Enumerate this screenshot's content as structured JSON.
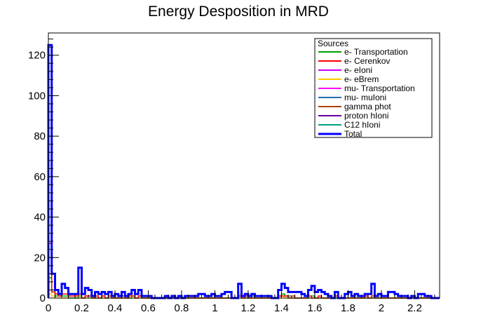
{
  "chart_data": {
    "type": "histogram",
    "title": "Energy Desposition in MRD",
    "xlabel": "",
    "ylabel": "",
    "xlim": [
      0,
      2.35
    ],
    "ylim": [
      0,
      131
    ],
    "x_ticks": [
      0,
      0.2,
      0.4,
      0.6,
      0.8,
      1,
      1.2,
      1.4,
      1.6,
      1.8,
      2,
      2.2
    ],
    "x_tick_labels": [
      "0",
      "0.2",
      "0.4",
      "0.6",
      "0.8",
      "1",
      "1.2",
      "1.4",
      "1.6",
      "1.8",
      "2",
      "2.2"
    ],
    "y_ticks": [
      0,
      20,
      40,
      60,
      80,
      100,
      120
    ],
    "y_tick_labels": [
      "0",
      "20",
      "40",
      "60",
      "80",
      "100",
      "120"
    ],
    "bin_width": 0.02,
    "legend": {
      "title": "Sources",
      "position": "top-right",
      "entries": [
        {
          "label": "e- Transportation",
          "color": "#00a000"
        },
        {
          "label": "e- Cerenkov",
          "color": "#ff0000"
        },
        {
          "label": "e- eIoni",
          "color": "#cc00ff"
        },
        {
          "label": "e- eBrem",
          "color": "#ffcc00"
        },
        {
          "label": "mu- Transportation",
          "color": "#ff00ff"
        },
        {
          "label": "mu- muIoni",
          "color": "#1f6fb0"
        },
        {
          "label": "gamma phot",
          "color": "#b04000"
        },
        {
          "label": "proton hIoni",
          "color": "#6a00a0"
        },
        {
          "label": "C12 hIoni",
          "color": "#00a080"
        },
        {
          "label": "Total",
          "color": "#0000ff"
        }
      ]
    },
    "series": [
      {
        "name": "Total",
        "color": "#0000ff",
        "values": [
          125,
          12,
          4,
          2,
          7,
          5,
          2,
          2,
          2,
          15,
          2,
          5,
          4,
          1,
          3,
          2,
          3,
          2,
          3,
          1,
          2,
          1,
          3,
          1,
          2,
          4,
          2,
          4,
          1,
          1,
          1,
          0,
          0,
          0,
          0,
          1,
          0,
          1,
          0,
          1,
          0,
          1,
          1,
          1,
          1,
          2,
          2,
          1,
          1,
          2,
          1,
          1,
          2,
          3,
          3,
          0,
          0,
          7,
          1,
          2,
          1,
          2,
          1,
          1,
          1,
          1,
          1,
          0,
          0,
          4,
          7,
          5,
          3,
          3,
          3,
          3,
          2,
          1,
          4,
          6,
          3,
          4,
          3,
          2,
          1,
          0,
          3,
          0,
          0,
          2,
          3,
          1,
          2,
          1,
          1,
          2,
          2,
          7,
          1,
          2,
          1,
          1,
          3,
          3,
          2,
          1,
          1,
          1,
          0,
          1,
          0,
          2,
          2,
          1,
          1,
          0,
          0,
          0,
          0,
          1,
          1,
          1,
          0,
          0,
          0,
          1,
          0,
          0,
          0,
          0,
          0,
          1,
          1,
          1,
          0,
          0,
          0,
          0,
          0,
          0,
          0,
          0,
          0,
          0,
          0,
          0,
          0,
          0,
          0,
          0,
          0,
          0,
          0,
          0,
          0,
          0,
          0,
          0,
          0,
          0,
          0,
          0,
          0,
          0,
          0,
          0,
          0,
          0,
          0,
          0,
          0,
          0,
          0,
          0,
          0,
          0,
          0,
          0,
          0,
          0,
          0,
          0,
          0,
          0,
          0,
          0,
          0,
          0,
          0,
          0,
          0,
          0,
          0,
          0,
          0,
          0,
          0,
          0,
          0,
          0,
          0,
          0,
          0,
          0,
          0,
          0,
          0,
          0,
          0,
          0,
          0,
          0,
          0,
          0,
          0,
          0,
          0,
          0,
          0,
          0,
          0,
          0,
          0,
          0,
          0,
          0,
          0,
          0,
          0,
          0,
          0,
          0,
          0,
          0,
          0,
          0,
          0,
          0,
          0,
          0,
          0,
          0,
          0,
          0,
          0,
          0,
          0,
          0,
          0,
          0,
          0,
          0,
          0,
          0,
          0,
          0,
          0,
          0,
          0,
          0,
          0,
          0,
          0,
          1,
          1,
          0,
          0,
          0,
          0,
          0,
          0,
          0,
          0,
          0,
          0,
          0,
          0,
          0,
          0,
          0,
          0,
          0,
          0,
          0,
          0,
          0,
          0,
          0,
          0,
          0
        ]
      },
      {
        "name": "e- Cerenkov",
        "color": "#ff0000",
        "values": [
          27,
          3,
          2,
          1,
          2,
          2,
          1,
          1,
          1,
          2,
          0,
          1,
          1,
          0,
          1,
          0,
          1,
          0,
          1,
          0,
          0,
          0,
          1,
          0,
          1,
          1,
          0,
          1,
          0,
          0,
          0,
          0,
          0,
          0,
          0,
          0,
          0,
          0,
          0,
          0,
          0,
          0,
          0,
          0,
          0,
          0,
          0,
          0,
          0,
          0,
          0,
          0,
          0,
          0,
          0,
          0,
          0,
          1,
          0,
          1,
          0,
          0,
          0,
          0,
          0,
          0,
          0,
          0,
          0,
          1,
          1,
          1,
          0,
          1,
          0,
          0,
          0,
          0,
          1,
          0,
          0,
          1,
          0,
          0,
          0,
          0,
          1,
          0,
          0,
          0,
          0,
          0,
          0,
          0,
          0,
          1,
          0,
          1,
          0,
          0,
          0,
          0,
          0,
          0,
          0,
          0,
          0,
          0,
          0,
          0,
          0,
          0,
          0,
          0,
          0,
          0,
          0,
          0,
          0,
          0,
          0,
          0,
          0,
          0,
          0,
          0,
          0,
          0,
          0,
          0,
          0,
          0,
          0,
          0,
          0,
          0,
          0,
          0,
          0,
          0,
          0,
          0,
          0,
          0,
          0,
          0,
          0,
          0,
          0,
          0,
          0,
          0,
          0,
          0,
          0,
          0,
          0,
          0,
          0,
          0,
          0,
          0,
          0,
          0,
          0,
          0,
          0,
          0,
          0,
          0,
          0,
          0,
          0,
          0,
          0,
          0,
          0,
          0,
          0,
          0,
          0,
          0,
          0,
          0,
          0,
          0,
          0,
          0,
          0,
          0,
          0,
          0,
          0,
          0,
          0,
          0,
          0,
          0,
          0,
          0,
          0,
          0,
          0,
          0,
          0,
          0,
          0,
          0,
          0,
          0,
          0,
          0,
          0,
          0,
          0,
          0,
          0,
          0,
          0,
          0,
          0,
          0,
          0,
          0,
          0,
          0,
          0,
          0,
          0,
          0,
          0,
          0,
          0,
          0,
          0,
          0,
          0,
          0,
          0,
          0,
          0,
          0,
          0,
          0,
          0,
          0,
          0,
          0,
          0,
          0,
          0,
          0,
          0,
          0,
          0,
          0,
          0,
          0,
          0,
          0,
          0,
          0,
          0,
          0,
          0,
          0,
          0,
          0,
          0,
          0,
          0,
          0,
          0,
          0,
          0,
          0,
          0,
          0,
          0,
          0,
          0,
          0,
          0,
          0,
          0,
          0,
          0,
          0,
          0,
          0,
          0
        ]
      },
      {
        "name": "e- Transportation",
        "color": "#00a000",
        "values": [
          10,
          4,
          1,
          1,
          1,
          1,
          0,
          0,
          0,
          1,
          0,
          1,
          1,
          0,
          0,
          0,
          1,
          0,
          1,
          0,
          0,
          0,
          0,
          0,
          0,
          1,
          0,
          1,
          0,
          0,
          0,
          0,
          0,
          0,
          0,
          0,
          0,
          0,
          0,
          0,
          0,
          0,
          0,
          0,
          0,
          0,
          0,
          0,
          0,
          0,
          0,
          0,
          0,
          0,
          0,
          0,
          0,
          1,
          0,
          0,
          0,
          1,
          0,
          0,
          0,
          0,
          0,
          0,
          0,
          1,
          2,
          1,
          1,
          0,
          0,
          0,
          0,
          0,
          1,
          1,
          0,
          0,
          0,
          0,
          0,
          0,
          0,
          0,
          0,
          0,
          0,
          0,
          0,
          0,
          0,
          0,
          0,
          0,
          0,
          0,
          0,
          0,
          0,
          0,
          0,
          0,
          0,
          0,
          0,
          0,
          0,
          0,
          0,
          0,
          0,
          0,
          0,
          0,
          0,
          0,
          0,
          0,
          0,
          0,
          0,
          0,
          0,
          0,
          0,
          0,
          0,
          0,
          0,
          0,
          0,
          0,
          0,
          0,
          0,
          0,
          0,
          0,
          0,
          0,
          0,
          0,
          0,
          0,
          0,
          0,
          0,
          0,
          0,
          0,
          0,
          0,
          0,
          0,
          0,
          0,
          0,
          0,
          0,
          0,
          0,
          0,
          0,
          0,
          0,
          0,
          0,
          0,
          0,
          0,
          0,
          0,
          0,
          0,
          0,
          0,
          0,
          0,
          0,
          0,
          0,
          0,
          0,
          0,
          0,
          0,
          0,
          0,
          0,
          0,
          0,
          0,
          0,
          0,
          0,
          0,
          0,
          0,
          0,
          0,
          0,
          0,
          0,
          0,
          0,
          0,
          0,
          0,
          0,
          0,
          0,
          0,
          0,
          0,
          0,
          0,
          0,
          0,
          0,
          0,
          0,
          0,
          0,
          0,
          0,
          0,
          0,
          0,
          0,
          0,
          0,
          0,
          0,
          0,
          0,
          0,
          0,
          0,
          0,
          0,
          0,
          0,
          0,
          0,
          0,
          0,
          0,
          0,
          0,
          0,
          0,
          0,
          0,
          0,
          0,
          0,
          0,
          0,
          0,
          0,
          0,
          0,
          0,
          0,
          0,
          0,
          0,
          0,
          0,
          0,
          0,
          0,
          0,
          0,
          0,
          0,
          0,
          0,
          0,
          0,
          0,
          0,
          0,
          0,
          0,
          0,
          0,
          0
        ]
      },
      {
        "name": "e- eBrem",
        "color": "#ffcc00",
        "values": [
          2,
          1,
          0,
          0,
          0,
          0,
          0,
          0,
          0,
          0,
          0,
          0,
          0,
          0,
          0,
          0,
          0,
          0,
          0,
          0,
          0,
          0,
          0,
          0,
          0,
          0,
          0,
          0,
          0,
          0,
          0,
          0,
          0,
          0,
          0,
          0,
          0,
          0,
          0,
          0,
          0,
          0,
          0,
          0,
          0,
          0,
          0,
          0,
          0,
          0,
          0,
          0,
          0,
          0,
          0,
          0,
          0,
          2,
          0,
          0,
          0,
          0,
          0,
          0,
          0,
          0,
          0,
          0,
          0,
          0,
          1,
          0,
          0,
          0,
          0,
          0,
          0,
          0,
          0,
          0,
          0,
          0,
          0,
          0,
          0,
          0,
          0,
          0,
          0,
          0,
          0,
          0,
          0,
          0,
          0,
          0,
          0,
          0,
          0,
          0,
          0,
          0,
          0,
          0,
          0,
          0,
          0,
          0,
          0,
          0,
          0,
          0,
          0,
          0,
          0,
          0,
          0,
          0,
          0,
          0,
          0,
          0,
          0,
          0,
          0,
          0,
          0,
          0,
          0,
          0,
          0,
          0,
          0,
          0,
          0,
          0,
          0,
          0,
          0,
          0,
          0,
          0,
          0,
          0,
          0,
          0,
          0,
          0,
          0,
          0,
          0,
          0,
          0,
          0,
          0,
          0,
          0,
          0,
          0,
          0,
          0,
          0,
          0,
          0,
          0,
          0,
          0,
          0,
          0,
          0,
          0,
          0,
          0,
          0,
          0,
          0,
          0,
          0,
          0,
          0,
          0,
          0,
          0,
          0,
          0,
          0,
          0,
          0,
          0,
          0,
          0,
          0,
          0,
          0,
          0,
          0,
          0,
          0,
          0,
          0,
          0,
          0,
          0,
          0,
          0,
          0,
          0,
          0,
          0,
          0,
          0,
          0,
          0,
          0,
          0,
          0,
          0,
          0,
          0,
          0,
          0,
          0,
          0,
          0,
          0,
          0,
          0,
          0,
          0,
          0,
          0,
          0,
          0,
          0,
          0,
          0,
          0,
          0,
          0,
          0,
          0,
          0,
          0,
          0,
          0,
          0,
          0,
          0,
          0,
          0,
          0,
          0,
          0,
          0,
          0,
          0,
          0,
          0,
          0,
          0,
          0,
          0,
          0,
          0,
          0,
          0,
          0,
          0,
          0,
          0,
          0,
          0,
          0,
          0,
          0,
          0,
          0,
          0,
          0,
          0,
          0,
          0,
          0,
          0,
          0,
          0,
          0,
          0,
          0,
          0,
          0,
          0,
          0
        ]
      }
    ]
  }
}
